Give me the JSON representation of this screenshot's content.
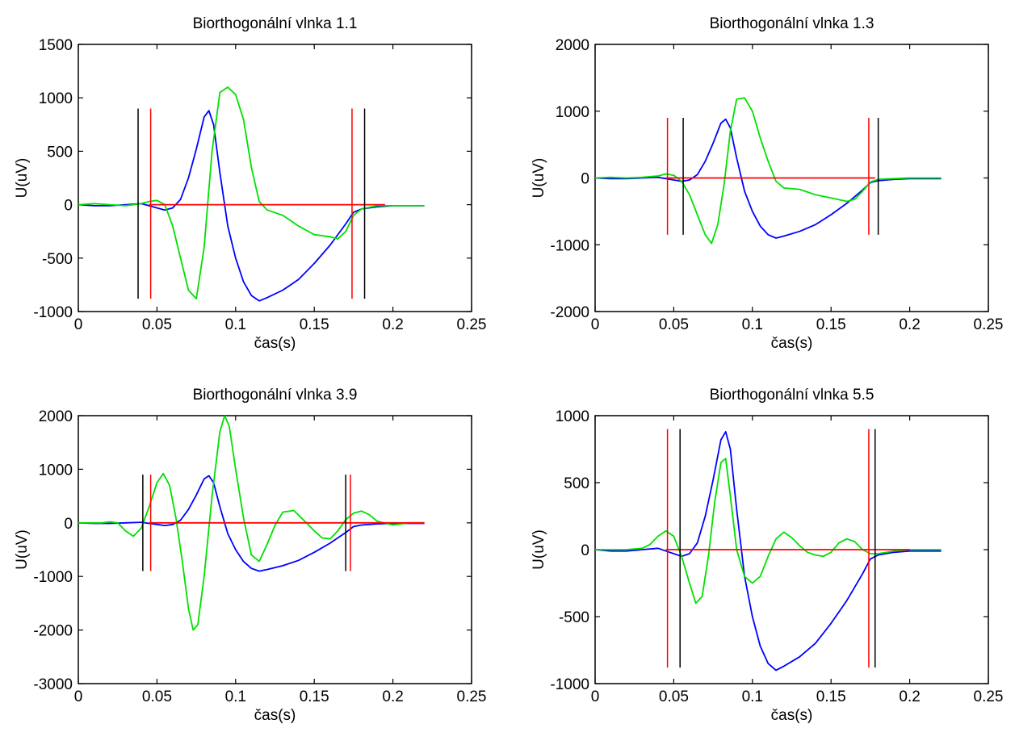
{
  "colors": {
    "original": "#0000ff",
    "wavelet": "#00e000",
    "red_markers": "#ff0000",
    "black_markers": "#000000",
    "baseline": "#ff0000"
  },
  "chart_data": [
    {
      "type": "line",
      "title": "Biorthogonální vlnka 1.1",
      "xlabel": "čas(s)",
      "ylabel": "U(uV)",
      "xlim": [
        0,
        0.25
      ],
      "ylim": [
        -1000,
        1500
      ],
      "xticks": [
        0,
        0.05,
        0.1,
        0.15,
        0.2,
        0.25
      ],
      "xtick_labels": [
        "0",
        "0.05",
        "0.1",
        "0.15",
        "0.2",
        "0.25"
      ],
      "yticks": [
        -1000,
        -500,
        0,
        500,
        1000,
        1500
      ],
      "ytick_labels": [
        "-1000",
        "-500",
        "0",
        "500",
        "1000",
        "1500"
      ],
      "series": [
        {
          "color": "#0000ff",
          "x": [
            0,
            0.01,
            0.02,
            0.03,
            0.04,
            0.045,
            0.05,
            0.055,
            0.06,
            0.065,
            0.07,
            0.075,
            0.08,
            0.083,
            0.086,
            0.09,
            0.095,
            0.1,
            0.105,
            0.11,
            0.115,
            0.12,
            0.13,
            0.14,
            0.15,
            0.16,
            0.17,
            0.175,
            0.18,
            0.19,
            0.2,
            0.21,
            0.22
          ],
          "y": [
            0,
            -10,
            -10,
            0,
            10,
            -10,
            -30,
            -50,
            -30,
            50,
            250,
            520,
            820,
            880,
            750,
            300,
            -200,
            -500,
            -720,
            -850,
            -900,
            -870,
            -800,
            -700,
            -550,
            -380,
            -180,
            -70,
            -40,
            -20,
            -10,
            -10,
            -10
          ]
        },
        {
          "color": "#00e000",
          "x": [
            0,
            0.01,
            0.02,
            0.03,
            0.04,
            0.045,
            0.05,
            0.055,
            0.06,
            0.065,
            0.07,
            0.075,
            0.08,
            0.085,
            0.09,
            0.095,
            0.1,
            0.105,
            0.11,
            0.115,
            0.12,
            0.13,
            0.14,
            0.15,
            0.155,
            0.16,
            0.165,
            0.17,
            0.175,
            0.18,
            0.19,
            0.2,
            0.21,
            0.22
          ],
          "y": [
            0,
            10,
            0,
            -10,
            10,
            30,
            40,
            0,
            -200,
            -500,
            -800,
            -880,
            -400,
            500,
            1050,
            1100,
            1030,
            800,
            350,
            30,
            -50,
            -100,
            -200,
            -280,
            -290,
            -300,
            -320,
            -250,
            -100,
            -40,
            -10,
            -10,
            -10,
            -10
          ]
        }
      ],
      "baseline": {
        "y": 0,
        "x": [
          0.045,
          0.195
        ]
      },
      "red_lines": [
        {
          "x": 0.046,
          "y": [
            -880,
            900
          ]
        },
        {
          "x": 0.174,
          "y": [
            -880,
            900
          ]
        }
      ],
      "black_lines": [
        {
          "x": 0.038,
          "y": [
            -880,
            900
          ]
        },
        {
          "x": 0.182,
          "y": [
            -880,
            900
          ]
        }
      ]
    },
    {
      "type": "line",
      "title": "Biorthogonální vlnka 1.3",
      "xlabel": "čas(s)",
      "ylabel": "U(uV)",
      "xlim": [
        0,
        0.25
      ],
      "ylim": [
        -2000,
        2000
      ],
      "xticks": [
        0,
        0.05,
        0.1,
        0.15,
        0.2,
        0.25
      ],
      "xtick_labels": [
        "0",
        "0.05",
        "0.1",
        "0.15",
        "0.2",
        "0.25"
      ],
      "yticks": [
        -2000,
        -1000,
        0,
        1000,
        2000
      ],
      "ytick_labels": [
        "-2000",
        "-1000",
        "0",
        "1000",
        "2000"
      ],
      "series": [
        {
          "color": "#0000ff",
          "x": [
            0,
            0.01,
            0.02,
            0.03,
            0.04,
            0.045,
            0.05,
            0.055,
            0.06,
            0.065,
            0.07,
            0.075,
            0.08,
            0.083,
            0.086,
            0.09,
            0.095,
            0.1,
            0.105,
            0.11,
            0.115,
            0.12,
            0.13,
            0.14,
            0.15,
            0.16,
            0.17,
            0.175,
            0.18,
            0.19,
            0.2,
            0.21,
            0.22
          ],
          "y": [
            0,
            -10,
            -10,
            0,
            10,
            -10,
            -30,
            -50,
            -30,
            50,
            250,
            520,
            820,
            880,
            750,
            300,
            -200,
            -500,
            -720,
            -850,
            -900,
            -870,
            -800,
            -700,
            -550,
            -380,
            -180,
            -70,
            -40,
            -20,
            -10,
            -10,
            -10
          ]
        },
        {
          "color": "#00e000",
          "x": [
            0,
            0.01,
            0.02,
            0.03,
            0.04,
            0.045,
            0.05,
            0.055,
            0.06,
            0.065,
            0.07,
            0.074,
            0.078,
            0.082,
            0.086,
            0.09,
            0.095,
            0.1,
            0.105,
            0.11,
            0.115,
            0.12,
            0.13,
            0.14,
            0.15,
            0.16,
            0.165,
            0.17,
            0.175,
            0.18,
            0.19,
            0.2,
            0.21,
            0.22
          ],
          "y": [
            0,
            10,
            0,
            10,
            30,
            60,
            40,
            -50,
            -250,
            -550,
            -850,
            -980,
            -700,
            -100,
            700,
            1180,
            1200,
            1000,
            600,
            250,
            -50,
            -150,
            -170,
            -250,
            -300,
            -350,
            -320,
            -200,
            -60,
            -20,
            -10,
            0,
            0,
            0
          ]
        }
      ],
      "baseline": {
        "y": 0,
        "x": [
          0.045,
          0.178
        ]
      },
      "red_lines": [
        {
          "x": 0.046,
          "y": [
            -850,
            900
          ]
        },
        {
          "x": 0.174,
          "y": [
            -850,
            900
          ]
        }
      ],
      "black_lines": [
        {
          "x": 0.056,
          "y": [
            -850,
            900
          ]
        },
        {
          "x": 0.18,
          "y": [
            -850,
            900
          ]
        }
      ]
    },
    {
      "type": "line",
      "title": "Biorthogonální vlnka 3.9",
      "xlabel": "čas(s)",
      "ylabel": "U(uV)",
      "xlim": [
        0,
        0.25
      ],
      "ylim": [
        -3000,
        2000
      ],
      "xticks": [
        0,
        0.05,
        0.1,
        0.15,
        0.2,
        0.25
      ],
      "xtick_labels": [
        "0",
        "0.05",
        "0.1",
        "0.15",
        "0.2",
        "0.25"
      ],
      "yticks": [
        -3000,
        -2000,
        -1000,
        0,
        1000,
        2000
      ],
      "ytick_labels": [
        "-3000",
        "-2000",
        "-1000",
        "0",
        "1000",
        "2000"
      ],
      "series": [
        {
          "color": "#0000ff",
          "x": [
            0,
            0.01,
            0.02,
            0.03,
            0.04,
            0.045,
            0.05,
            0.055,
            0.06,
            0.065,
            0.07,
            0.075,
            0.08,
            0.083,
            0.086,
            0.09,
            0.095,
            0.1,
            0.105,
            0.11,
            0.115,
            0.12,
            0.13,
            0.14,
            0.15,
            0.16,
            0.17,
            0.175,
            0.18,
            0.19,
            0.2,
            0.21,
            0.22
          ],
          "y": [
            0,
            -10,
            -10,
            0,
            10,
            -10,
            -30,
            -50,
            -30,
            50,
            250,
            520,
            820,
            880,
            750,
            300,
            -200,
            -500,
            -720,
            -850,
            -900,
            -870,
            -800,
            -700,
            -550,
            -380,
            -180,
            -70,
            -40,
            -20,
            -10,
            -10,
            -10
          ]
        },
        {
          "color": "#00e000",
          "x": [
            0,
            0.015,
            0.02,
            0.025,
            0.03,
            0.035,
            0.04,
            0.045,
            0.05,
            0.054,
            0.058,
            0.062,
            0.066,
            0.07,
            0.073,
            0.076,
            0.08,
            0.085,
            0.09,
            0.093,
            0.096,
            0.1,
            0.105,
            0.11,
            0.115,
            0.12,
            0.125,
            0.13,
            0.137,
            0.145,
            0.15,
            0.155,
            0.16,
            0.165,
            0.17,
            0.175,
            0.18,
            0.185,
            0.19,
            0.2,
            0.21,
            0.22
          ],
          "y": [
            0,
            0,
            20,
            0,
            -150,
            -250,
            -100,
            300,
            750,
            920,
            700,
            100,
            -700,
            -1600,
            -2000,
            -1900,
            -1000,
            500,
            1700,
            2000,
            1800,
            1000,
            100,
            -600,
            -720,
            -400,
            -50,
            200,
            230,
            0,
            -150,
            -280,
            -300,
            -150,
            60,
            180,
            220,
            150,
            30,
            -40,
            0,
            0
          ]
        }
      ],
      "baseline": {
        "y": 0,
        "x": [
          0.045,
          0.22
        ]
      },
      "red_lines": [
        {
          "x": 0.046,
          "y": [
            -900,
            900
          ]
        },
        {
          "x": 0.173,
          "y": [
            -900,
            900
          ]
        }
      ],
      "black_lines": [
        {
          "x": 0.041,
          "y": [
            -900,
            900
          ]
        },
        {
          "x": 0.17,
          "y": [
            -900,
            900
          ]
        }
      ]
    },
    {
      "type": "line",
      "title": "Biorthogonální vlnka 5.5",
      "xlabel": "čas(s)",
      "ylabel": "U(uV)",
      "xlim": [
        0,
        0.25
      ],
      "ylim": [
        -1000,
        1000
      ],
      "xticks": [
        0,
        0.05,
        0.1,
        0.15,
        0.2,
        0.25
      ],
      "xtick_labels": [
        "0",
        "0.05",
        "0.1",
        "0.15",
        "0.2",
        "0.25"
      ],
      "yticks": [
        -1000,
        -500,
        0,
        500,
        1000
      ],
      "ytick_labels": [
        "-1000",
        "-500",
        "0",
        "500",
        "1000"
      ],
      "series": [
        {
          "color": "#0000ff",
          "x": [
            0,
            0.01,
            0.02,
            0.03,
            0.04,
            0.045,
            0.05,
            0.055,
            0.06,
            0.065,
            0.07,
            0.075,
            0.08,
            0.083,
            0.086,
            0.09,
            0.095,
            0.1,
            0.105,
            0.11,
            0.115,
            0.12,
            0.13,
            0.14,
            0.15,
            0.16,
            0.17,
            0.175,
            0.18,
            0.19,
            0.2,
            0.21,
            0.22
          ],
          "y": [
            0,
            -10,
            -10,
            0,
            10,
            -10,
            -30,
            -50,
            -30,
            50,
            250,
            520,
            820,
            880,
            750,
            300,
            -200,
            -500,
            -720,
            -850,
            -900,
            -870,
            -800,
            -700,
            -550,
            -380,
            -180,
            -70,
            -40,
            -20,
            -10,
            -10,
            -10
          ]
        },
        {
          "color": "#00e000",
          "x": [
            0,
            0.02,
            0.03,
            0.035,
            0.04,
            0.045,
            0.05,
            0.055,
            0.06,
            0.064,
            0.068,
            0.072,
            0.076,
            0.08,
            0.083,
            0.086,
            0.09,
            0.095,
            0.1,
            0.105,
            0.11,
            0.115,
            0.12,
            0.125,
            0.13,
            0.135,
            0.14,
            0.145,
            0.15,
            0.155,
            0.16,
            0.165,
            0.17,
            0.175,
            0.18,
            0.19,
            0.2,
            0.21,
            0.22
          ],
          "y": [
            0,
            0,
            10,
            40,
            100,
            140,
            100,
            -50,
            -250,
            -400,
            -350,
            -50,
            350,
            650,
            680,
            400,
            0,
            -200,
            -250,
            -200,
            -50,
            80,
            130,
            90,
            30,
            -20,
            -40,
            -50,
            -20,
            50,
            80,
            60,
            0,
            -30,
            -30,
            -10,
            0,
            0,
            0
          ]
        }
      ],
      "baseline": {
        "y": 0,
        "x": [
          0.045,
          0.2
        ]
      },
      "red_lines": [
        {
          "x": 0.046,
          "y": [
            -880,
            900
          ]
        },
        {
          "x": 0.174,
          "y": [
            -880,
            900
          ]
        }
      ],
      "black_lines": [
        {
          "x": 0.054,
          "y": [
            -880,
            900
          ]
        },
        {
          "x": 0.178,
          "y": [
            -880,
            900
          ]
        }
      ]
    }
  ]
}
